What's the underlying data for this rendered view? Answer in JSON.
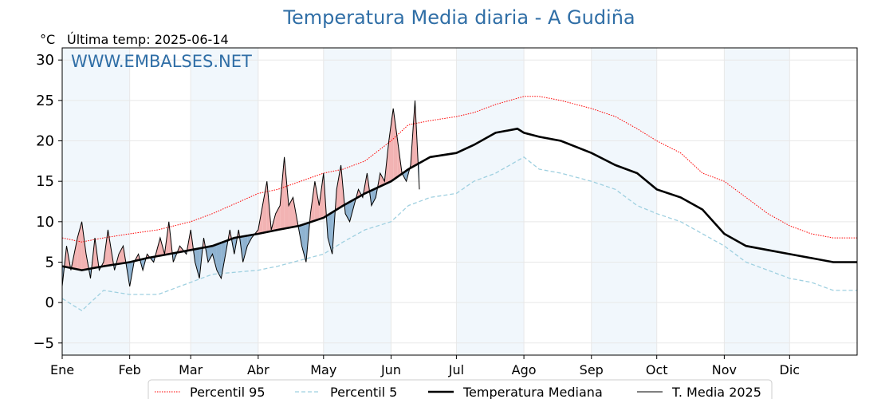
{
  "chart_data": {
    "type": "line",
    "title": "Temperatura Media diaria - A Gudiña",
    "unit_label": "°C",
    "subtitle": "Última temp: 2025-06-14",
    "watermark": "WWW.EMBALSES.NET",
    "ylim": [
      -6.5,
      31.5
    ],
    "yticks": [
      -5,
      0,
      5,
      10,
      15,
      20,
      25,
      30
    ],
    "xlim": [
      1,
      366
    ],
    "months": [
      {
        "label": "Ene",
        "day": 1
      },
      {
        "label": "Feb",
        "day": 32
      },
      {
        "label": "Mar",
        "day": 60
      },
      {
        "label": "Abr",
        "day": 91
      },
      {
        "label": "May",
        "day": 121
      },
      {
        "label": "Jun",
        "day": 152
      },
      {
        "label": "Jul",
        "day": 182
      },
      {
        "label": "Ago",
        "day": 213
      },
      {
        "label": "Sep",
        "day": 244
      },
      {
        "label": "Oct",
        "day": 274
      },
      {
        "label": "Nov",
        "day": 305
      },
      {
        "label": "Dic",
        "day": 335
      }
    ],
    "grid": true,
    "legend_position": "bottom",
    "series": [
      {
        "name": "Percentil 95",
        "style": "dotted",
        "color": "#ff0000",
        "x": [
          1,
          10,
          20,
          32,
          45,
          60,
          70,
          91,
          100,
          121,
          130,
          140,
          152,
          160,
          170,
          182,
          190,
          200,
          213,
          220,
          230,
          244,
          255,
          265,
          274,
          285,
          295,
          305,
          315,
          325,
          335,
          345,
          355,
          366
        ],
        "y": [
          8,
          7.5,
          8,
          8.5,
          9,
          10,
          11,
          13.5,
          14,
          16,
          16.5,
          17.5,
          20,
          22,
          22.5,
          23,
          23.5,
          24.5,
          25.5,
          25.5,
          25,
          24,
          23,
          21.5,
          20,
          18.5,
          16,
          15,
          13,
          11,
          9.5,
          8.5,
          8,
          8
        ]
      },
      {
        "name": "Percentil 5",
        "style": "dashed",
        "color": "#9fd0e0",
        "x": [
          1,
          10,
          20,
          32,
          45,
          60,
          70,
          91,
          100,
          121,
          130,
          140,
          152,
          160,
          170,
          182,
          190,
          200,
          213,
          220,
          230,
          244,
          255,
          265,
          274,
          285,
          295,
          305,
          315,
          325,
          335,
          345,
          355,
          366
        ],
        "y": [
          0.5,
          -1,
          1.5,
          1,
          1,
          2.5,
          3.5,
          4,
          4.5,
          6,
          7.5,
          9,
          10,
          12,
          13,
          13.5,
          15,
          16,
          18,
          16.5,
          16,
          15,
          14,
          12,
          11,
          10,
          8.5,
          7,
          5,
          4,
          3,
          2.5,
          1.5,
          1.5
        ]
      },
      {
        "name": "Temperatura Mediana",
        "style": "solid-bold",
        "color": "#000000",
        "x": [
          1,
          10,
          20,
          32,
          40,
          50,
          60,
          70,
          80,
          91,
          100,
          110,
          121,
          130,
          140,
          152,
          160,
          170,
          182,
          190,
          200,
          210,
          213,
          220,
          230,
          244,
          255,
          265,
          274,
          285,
          295,
          305,
          315,
          325,
          335,
          345,
          355,
          366
        ],
        "y": [
          4.5,
          4,
          4.5,
          5,
          5.5,
          6,
          6.5,
          7,
          8,
          8.5,
          9,
          9.5,
          10.5,
          12,
          13.5,
          15,
          16.5,
          18,
          18.5,
          19.5,
          21,
          21.5,
          21,
          20.5,
          20,
          18.5,
          17,
          16,
          14,
          13,
          11.5,
          8.5,
          7,
          6.5,
          6,
          5.5,
          5,
          5
        ]
      },
      {
        "name": "T. Media 2025",
        "style": "solid-thin",
        "color": "#000000",
        "x": [
          1,
          3,
          5,
          8,
          10,
          12,
          14,
          16,
          18,
          20,
          22,
          25,
          27,
          29,
          32,
          34,
          36,
          38,
          40,
          43,
          46,
          48,
          50,
          52,
          55,
          58,
          60,
          62,
          64,
          66,
          68,
          70,
          72,
          74,
          76,
          78,
          80,
          82,
          84,
          86,
          88,
          91,
          93,
          95,
          97,
          99,
          101,
          103,
          105,
          107,
          109,
          111,
          113,
          115,
          117,
          119,
          121,
          123,
          125,
          127,
          129,
          131,
          133,
          135,
          137,
          139,
          141,
          143,
          145,
          147,
          149,
          151,
          153,
          155,
          157,
          159,
          161,
          163,
          165
        ],
        "y": [
          2,
          7,
          4,
          8,
          10,
          6,
          3,
          8,
          4,
          5,
          9,
          4,
          6,
          7,
          2,
          5,
          6,
          4,
          6,
          5,
          8,
          6,
          10,
          5,
          7,
          6,
          9,
          5,
          3,
          8,
          5,
          6,
          4,
          3,
          6,
          9,
          6,
          9,
          5,
          7,
          8,
          9,
          12,
          15,
          9,
          11,
          12,
          18,
          12,
          13,
          10,
          7,
          5,
          11,
          15,
          12,
          16,
          8,
          6,
          14,
          17,
          11,
          10,
          12,
          14,
          13,
          16,
          12,
          13,
          16,
          15,
          20,
          24,
          20,
          16,
          15,
          17,
          25,
          14
        ]
      }
    ]
  }
}
